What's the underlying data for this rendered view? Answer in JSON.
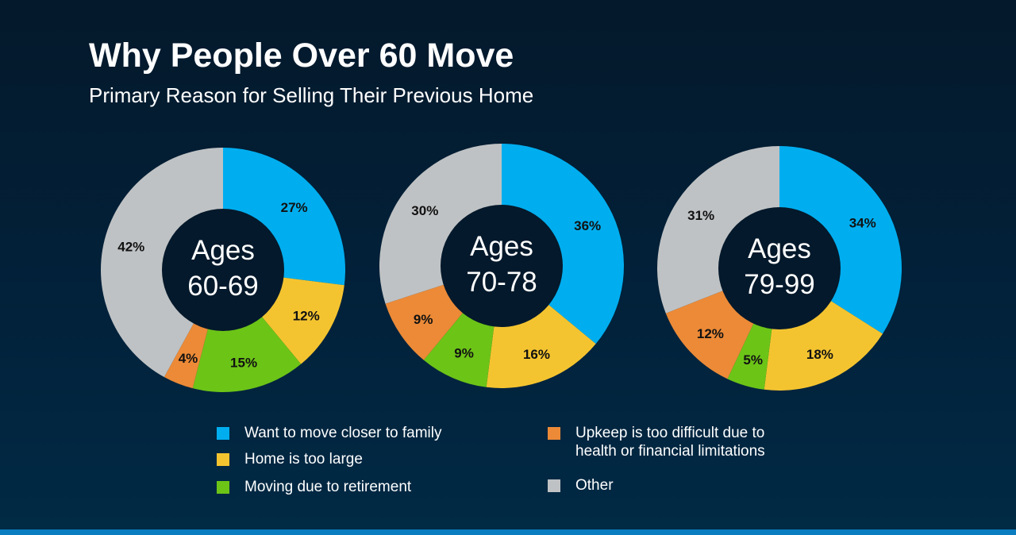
{
  "title": "Why People Over 60 Move",
  "subtitle": "Primary Reason for Selling Their Previous Home",
  "chart_data": {
    "type": "pie",
    "variant": "donut",
    "categories": [
      "Want to move closer to family",
      "Home is too large",
      "Moving due to retirement",
      "Upkeep is too difficult due to health or financial limitations",
      "Other"
    ],
    "colors": [
      "#00aeef",
      "#f4c430",
      "#6cc417",
      "#ec8a37",
      "#bfc2c4"
    ],
    "charts": [
      {
        "label_line1": "Ages",
        "label_line2": "60-69",
        "values": [
          27,
          12,
          15,
          4,
          42
        ],
        "labels": [
          "27%",
          "12%",
          "15%",
          "4%",
          "42%"
        ]
      },
      {
        "label_line1": "Ages",
        "label_line2": "70-78",
        "values": [
          36,
          16,
          9,
          9,
          30
        ],
        "labels": [
          "36%",
          "16%",
          "9%",
          "9%",
          "30%"
        ]
      },
      {
        "label_line1": "Ages",
        "label_line2": "79-99",
        "values": [
          34,
          18,
          5,
          12,
          31
        ],
        "labels": [
          "34%",
          "18%",
          "5%",
          "12%",
          "31%"
        ]
      }
    ]
  },
  "legend": [
    {
      "line1": "Want to move closer to family"
    },
    {
      "line1": "Home is too large"
    },
    {
      "line1": "Moving due to retirement"
    },
    {
      "line1": "Upkeep is too difficult due to",
      "line2": "health or financial limitations"
    },
    {
      "line1": "Other"
    }
  ]
}
